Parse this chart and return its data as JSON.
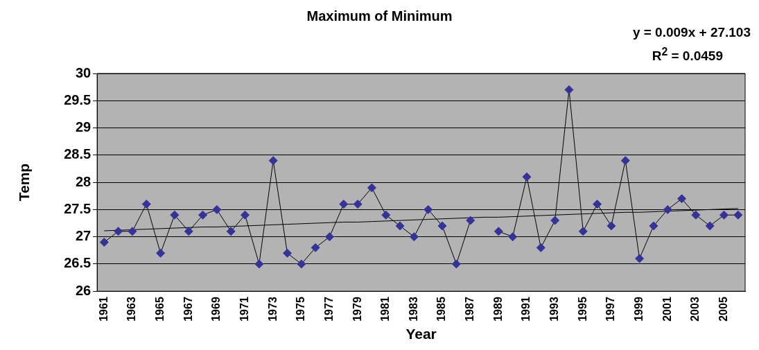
{
  "chart_data": {
    "type": "line",
    "title": "Maximum of Minimum",
    "xlabel": "Year",
    "ylabel": "Temp",
    "annotations": [
      "y = 0.009x + 27.103",
      "R$^{2}$ = 0.0459"
    ],
    "categories": [
      "1961",
      null,
      "1963",
      null,
      "1965",
      null,
      "1967",
      null,
      "1969",
      null,
      "1971",
      null,
      "1973",
      null,
      "1975",
      null,
      "1977",
      null,
      "1979",
      null,
      "1981",
      null,
      "1983",
      null,
      "1985",
      null,
      "1987",
      null,
      "1989",
      null,
      "1991",
      null,
      "1993",
      null,
      "1995",
      null,
      "1997",
      null,
      "1999",
      null,
      "2001",
      null,
      "2003",
      null,
      "2005",
      null
    ],
    "series": [
      {
        "color": "#333399",
        "marker": "diamond",
        "values": [
          26.9,
          27.1,
          27.1,
          27.6,
          26.7,
          27.4,
          27.1,
          27.4,
          27.5,
          27.1,
          27.4,
          26.5,
          28.4,
          26.7,
          26.5,
          26.8,
          27.0,
          27.6,
          27.6,
          27.9,
          27.4,
          27.2,
          27.0,
          27.5,
          27.2,
          26.5,
          27.3,
          null,
          27.1,
          27.0,
          28.1,
          26.8,
          27.3,
          29.7,
          27.1,
          27.6,
          27.2,
          28.4,
          26.6,
          27.2,
          27.5,
          27.7,
          27.4,
          27.2,
          27.4,
          27.4
        ]
      },
      {
        "color": "#000000",
        "marker": "none",
        "values": [
          27.11,
          27.12,
          27.13,
          27.14,
          27.15,
          27.16,
          27.17,
          27.18,
          27.18,
          27.19,
          27.2,
          27.21,
          27.22,
          27.23,
          27.24,
          27.25,
          27.26,
          27.27,
          27.27,
          27.28,
          27.29,
          27.3,
          27.31,
          27.32,
          27.33,
          27.34,
          27.35,
          27.36,
          27.36,
          27.37,
          27.38,
          27.39,
          27.4,
          27.41,
          27.42,
          27.43,
          27.44,
          27.45,
          27.45,
          27.46,
          27.47,
          27.48,
          27.49,
          27.5,
          27.51,
          27.52
        ]
      }
    ],
    "ylim": [
      26,
      30
    ],
    "yticks": [
      26,
      26.5,
      27,
      27.5,
      28,
      28.5,
      29,
      29.5,
      30
    ],
    "grid": "y",
    "legend": false,
    "line_style": "solid"
  }
}
